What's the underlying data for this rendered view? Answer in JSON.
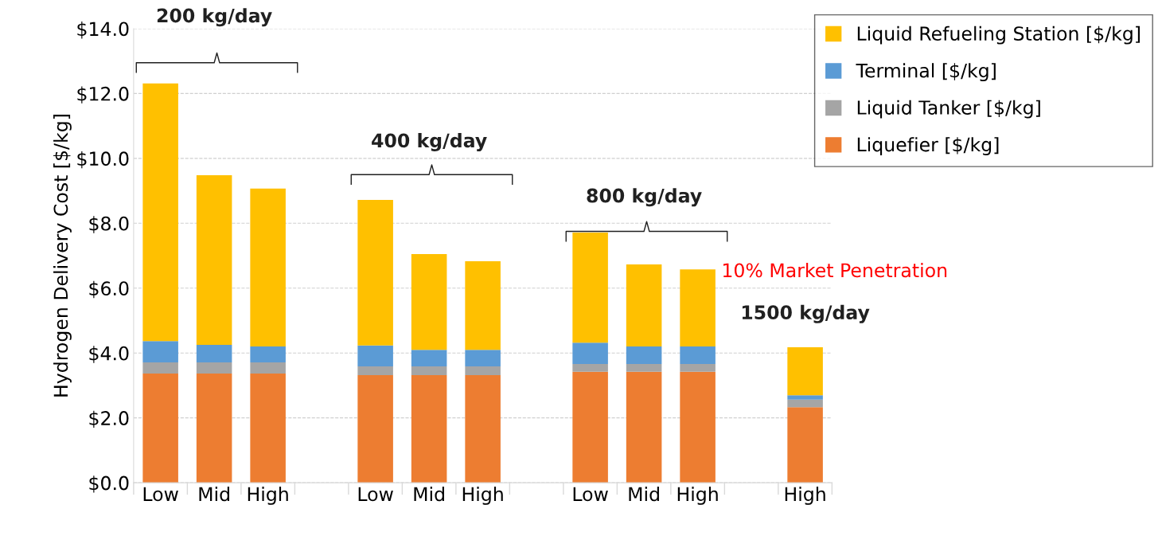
{
  "chart_data": {
    "type": "bar",
    "stacked": true,
    "ylabel": "Hydrogen Delivery Cost [$/kg]",
    "categories": [
      "Low",
      "Mid",
      "High",
      null,
      "Low",
      "Mid",
      "High",
      null,
      "Low",
      "Mid",
      "High",
      null,
      "High"
    ],
    "series": [
      {
        "name": "Liquefier [$/kg]",
        "color": "#ed7d31",
        "values": [
          3.37,
          3.37,
          3.37,
          null,
          3.32,
          3.32,
          3.32,
          null,
          3.42,
          3.42,
          3.42,
          null,
          2.33
        ]
      },
      {
        "name": "Liquid Tanker [$/kg]",
        "color": "#a5a5a5",
        "values": [
          0.34,
          0.34,
          0.34,
          null,
          0.27,
          0.27,
          0.27,
          null,
          0.24,
          0.24,
          0.24,
          null,
          0.23
        ]
      },
      {
        "name": "Terminal [$/kg]",
        "color": "#5b9bd5",
        "values": [
          0.66,
          0.54,
          0.49,
          null,
          0.64,
          0.51,
          0.51,
          null,
          0.66,
          0.54,
          0.54,
          null,
          0.14
        ]
      },
      {
        "name": "Liquid Refueling Station [$/kg]",
        "color": "#ffc000",
        "values": [
          7.94,
          5.23,
          4.87,
          null,
          4.49,
          2.95,
          2.73,
          null,
          3.39,
          2.53,
          2.38,
          null,
          1.48
        ]
      }
    ],
    "ylim": [
      0,
      14
    ],
    "yticks": [
      {
        "value": 0,
        "label": "$0.0"
      },
      {
        "value": 2,
        "label": "$2.0"
      },
      {
        "value": 4,
        "label": "$4.0"
      },
      {
        "value": 6,
        "label": "$6.0"
      },
      {
        "value": 8,
        "label": "$8.0"
      },
      {
        "value": 10,
        "label": "$10.0"
      },
      {
        "value": 12,
        "label": "$12.0"
      },
      {
        "value": 14,
        "label": "$14.0"
      }
    ],
    "grid": "y",
    "legend": "top right",
    "annotations": [
      "200 kg/day",
      "400 kg/day",
      "800 kg/day",
      "1500 kg/day",
      "10% Market Penetration"
    ]
  }
}
